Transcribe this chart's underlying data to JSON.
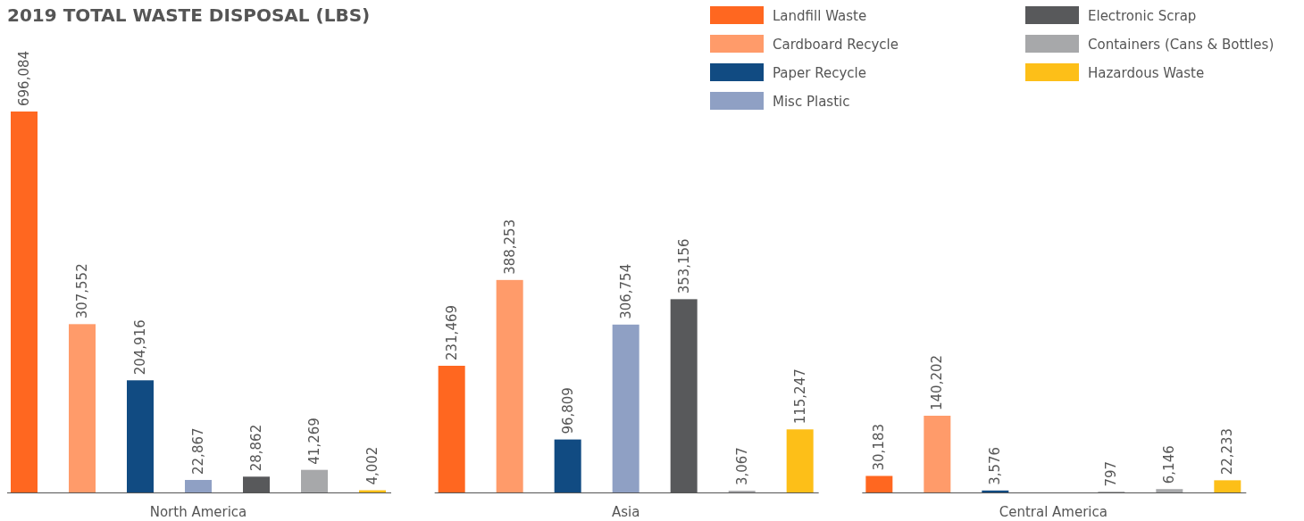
{
  "chart_data": {
    "type": "bar",
    "title": "2019 TOTAL WASTE DISPOSAL (LBS)",
    "categories": [
      "North America",
      "Asia",
      "Central America"
    ],
    "series": [
      {
        "name": "Landfill Waste",
        "color": "#ff6720",
        "values": [
          696084,
          231469,
          30183
        ],
        "value_labels": [
          "696,084",
          "231,469",
          "30,183"
        ]
      },
      {
        "name": "Cardboard Recycle",
        "color": "#ff9b6a",
        "values": [
          307552,
          388253,
          140202
        ],
        "value_labels": [
          "307,552",
          "388,253",
          "140,202"
        ]
      },
      {
        "name": "Paper Recycle",
        "color": "#114b82",
        "values": [
          204916,
          96809,
          3576
        ],
        "value_labels": [
          "204,916",
          "96,809",
          "3,576"
        ]
      },
      {
        "name": "Misc Plastic",
        "color": "#8fa0c4",
        "values": [
          22867,
          306754,
          null
        ],
        "value_labels": [
          "22,867",
          "306,754",
          null
        ]
      },
      {
        "name": "Electronic Scrap",
        "color": "#58595b",
        "values": [
          28862,
          353156,
          797
        ],
        "value_labels": [
          "28,862",
          "353,156",
          "797"
        ]
      },
      {
        "name": "Containers (Cans & Bottles)",
        "color": "#a7a8aa",
        "values": [
          41269,
          3067,
          6146
        ],
        "value_labels": [
          "41,269",
          "3,067",
          "6,146"
        ]
      },
      {
        "name": "Hazardous Waste",
        "color": "#fdbf18",
        "values": [
          4002,
          115247,
          22233
        ],
        "value_labels": [
          "4,002",
          "115,247",
          "22,233"
        ]
      }
    ],
    "ylim": [
      0,
      696084
    ],
    "legend": "top right"
  }
}
